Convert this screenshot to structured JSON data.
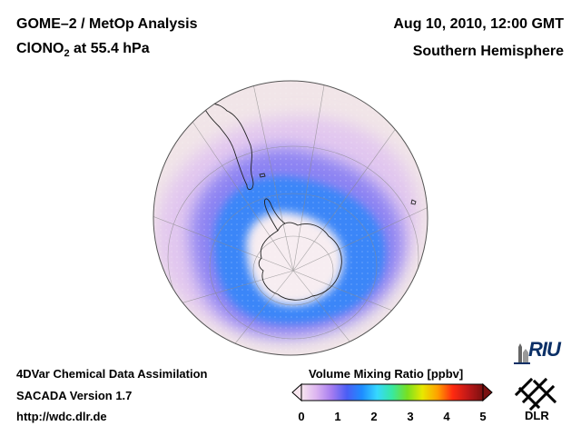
{
  "header": {
    "title": "GOME–2 / MetOp Analysis",
    "species": "ClONO",
    "species_subscript": "2",
    "level": " at 55.4 hPa",
    "datetime": "Aug 10, 2010, 12:00 GMT",
    "region": "Southern Hemisphere"
  },
  "footer": {
    "method": "4DVar Chemical Data Assimilation",
    "version": "SACADA Version 1.7",
    "url": "http://wdc.dlr.de"
  },
  "colorbar": {
    "title": "Volume Mixing Ratio [ppbv]",
    "min": 0,
    "max": 5,
    "ticks": [
      "0",
      "1",
      "2",
      "3",
      "4",
      "5"
    ],
    "colors": [
      "#f8e6ef",
      "#dcb4f0",
      "#a57cf0",
      "#4a5ef5",
      "#1e8cff",
      "#36d8ff",
      "#38e8a0",
      "#78e020",
      "#e8e800",
      "#ffa000",
      "#ff2a10",
      "#c01818",
      "#7a1010"
    ]
  },
  "map": {
    "projection": "orthographic",
    "hemisphere": "south",
    "field_colors": {
      "background": "#f1e5e8",
      "low": "#e2c7ef",
      "mid": "#8c83f3",
      "high": "#3a86f8",
      "peak": "#2a6df0",
      "vortex_core": "#f7edf1"
    }
  },
  "logos": {
    "riu": "RIU",
    "dlr": "DLR"
  }
}
